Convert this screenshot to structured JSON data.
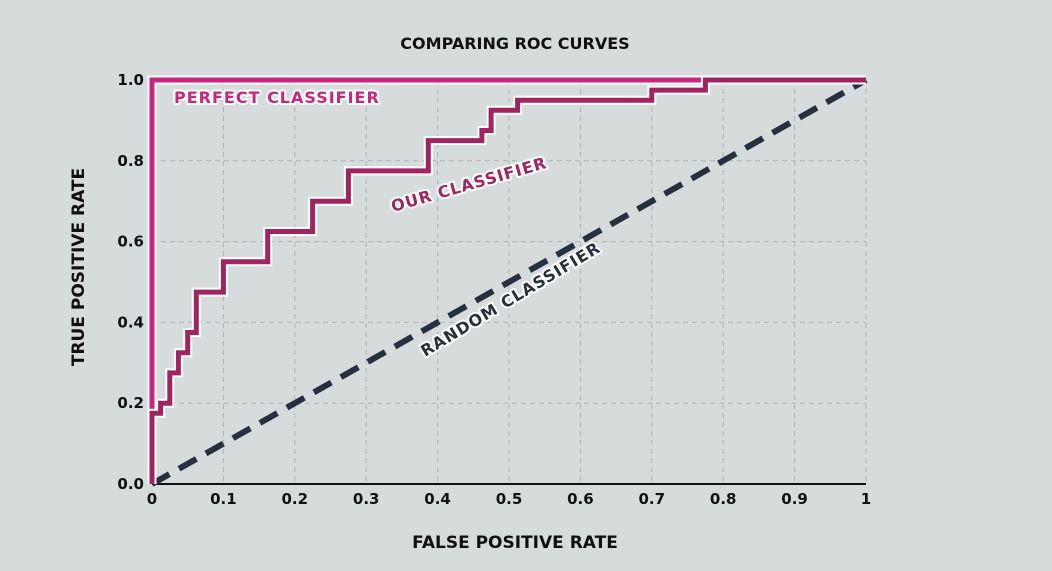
{
  "chart_data": {
    "type": "line",
    "title": "COMPARING ROC CURVES",
    "xlabel": "FALSE POSITIVE RATE",
    "ylabel": "TRUE POSITIVE RATE",
    "xlim": [
      0,
      1
    ],
    "ylim": [
      0,
      1
    ],
    "grid": true,
    "x_ticks": [
      "0",
      "0.1",
      "0.2",
      "0.3",
      "0.4",
      "0.5",
      "0.6",
      "0.7",
      "0.8",
      "0.9",
      "1"
    ],
    "y_ticks": [
      "0.0",
      "0.2",
      "0.4",
      "0.6",
      "0.8",
      "1.0"
    ],
    "series": [
      {
        "name": "PERFECT CLASSIFIER",
        "color": "#c8277f",
        "style": "solid",
        "points": [
          [
            0,
            0
          ],
          [
            0,
            1
          ],
          [
            1,
            1
          ]
        ]
      },
      {
        "name": "OUR CLASSIFIER",
        "color": "#a0245f",
        "style": "step",
        "points": [
          [
            0,
            0
          ],
          [
            0,
            0.175
          ],
          [
            0.012,
            0.175
          ],
          [
            0.012,
            0.2
          ],
          [
            0.025,
            0.2
          ],
          [
            0.025,
            0.275
          ],
          [
            0.037,
            0.275
          ],
          [
            0.037,
            0.325
          ],
          [
            0.05,
            0.325
          ],
          [
            0.05,
            0.375
          ],
          [
            0.062,
            0.375
          ],
          [
            0.062,
            0.475
          ],
          [
            0.1,
            0.475
          ],
          [
            0.1,
            0.55
          ],
          [
            0.162,
            0.55
          ],
          [
            0.162,
            0.625
          ],
          [
            0.225,
            0.625
          ],
          [
            0.225,
            0.7
          ],
          [
            0.275,
            0.7
          ],
          [
            0.275,
            0.775
          ],
          [
            0.387,
            0.775
          ],
          [
            0.387,
            0.85
          ],
          [
            0.462,
            0.85
          ],
          [
            0.462,
            0.875
          ],
          [
            0.475,
            0.875
          ],
          [
            0.475,
            0.925
          ],
          [
            0.512,
            0.925
          ],
          [
            0.512,
            0.95
          ],
          [
            0.7,
            0.95
          ],
          [
            0.7,
            0.975
          ],
          [
            0.775,
            0.975
          ],
          [
            0.775,
            1
          ],
          [
            1,
            1
          ]
        ]
      },
      {
        "name": "RANDOM CLASSIFIER",
        "color": "#26303f",
        "style": "dashed",
        "points": [
          [
            0,
            0
          ],
          [
            1,
            1
          ]
        ]
      }
    ]
  }
}
